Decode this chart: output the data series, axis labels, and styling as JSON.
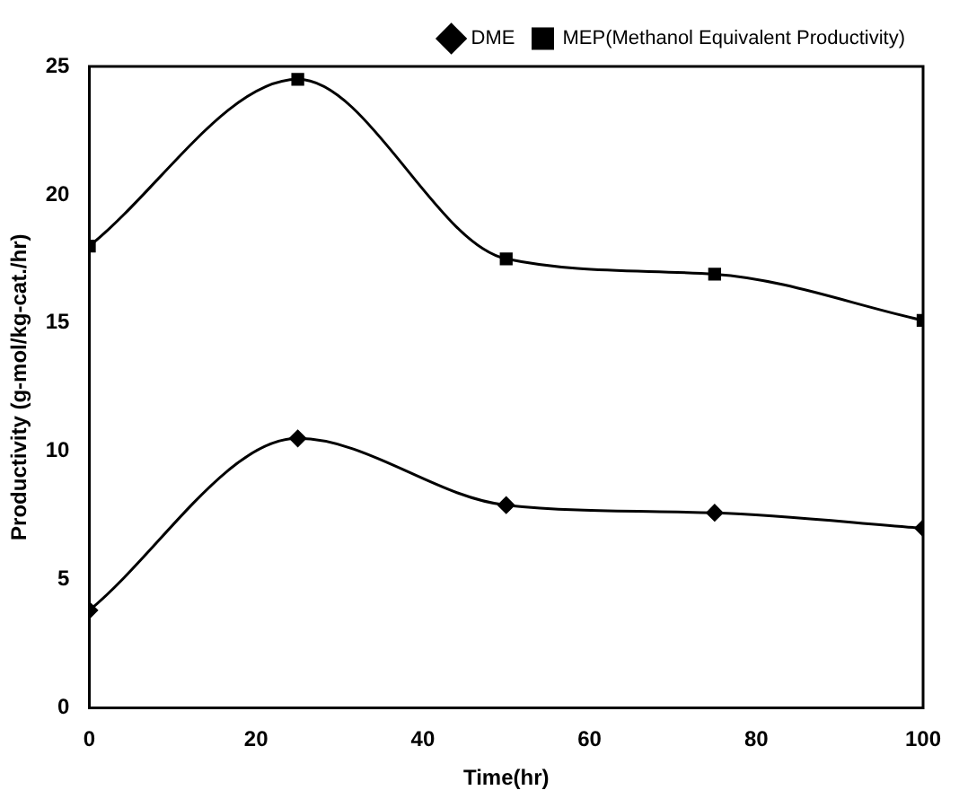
{
  "chart_data": {
    "type": "line",
    "xlabel": "Time(hr)",
    "ylabel": "Productivity (g-mol/kg-cat./hr)",
    "x": [
      0,
      25,
      50,
      75,
      100
    ],
    "xlim": [
      0,
      100
    ],
    "xticks": [
      0,
      20,
      40,
      60,
      80,
      100
    ],
    "ylim": [
      0,
      25
    ],
    "yticks": [
      0,
      5,
      10,
      15,
      20,
      25
    ],
    "grid": false,
    "legend": "top right",
    "series": [
      {
        "name": "DME",
        "color": "#000000",
        "marker": "diamond",
        "values": [
          3.8,
          10.5,
          7.9,
          7.6,
          7.0
        ]
      },
      {
        "name": "MEP(Methanol Equivalent Productivity)",
        "color": "#000000",
        "marker": "square",
        "values": [
          18.0,
          24.5,
          17.5,
          16.9,
          15.1
        ]
      }
    ]
  }
}
